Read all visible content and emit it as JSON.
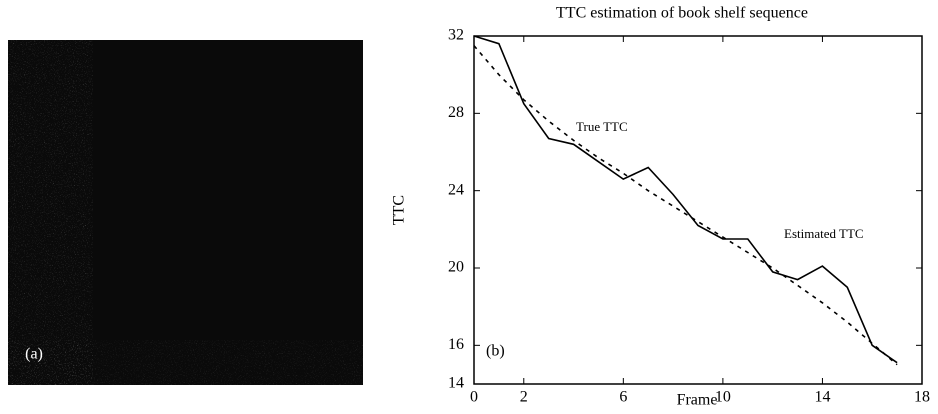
{
  "panel_a": {
    "label": "(a)"
  },
  "chart_data": {
    "type": "line",
    "title": "TTC estimation of book shelf sequence",
    "x_label": "Frame",
    "y_label": "TTC",
    "annotations": [
      "True TTC",
      "Estimated TTC",
      "(b)"
    ],
    "x": [
      0,
      1,
      2,
      3,
      4,
      5,
      6,
      7,
      8,
      9,
      10,
      11,
      12,
      13,
      14,
      15,
      16,
      17
    ],
    "series": [
      {
        "name": "True TTC",
        "color": "#000000",
        "style": "dashed",
        "values": [
          31.5,
          30,
          28.7,
          27.6,
          26.6,
          25.7,
          24.9,
          24,
          23.2,
          22.4,
          21.6,
          20.8,
          20,
          19.1,
          18.2,
          17.2,
          16.1,
          15
        ]
      },
      {
        "name": "Estimated TTC",
        "color": "#000000",
        "style": "solid",
        "values": [
          32,
          31.6,
          28.5,
          26.7,
          26.4,
          25.5,
          24.6,
          25.2,
          23.8,
          22.2,
          21.5,
          21.5,
          19.8,
          19.4,
          20.1,
          19,
          16,
          15.1
        ]
      }
    ],
    "xlim": [
      0,
      18
    ],
    "ylim": [
      14,
      32
    ],
    "xticks": [
      0,
      2,
      6,
      10,
      14,
      18
    ],
    "yticks": [
      14,
      16,
      20,
      24,
      28,
      32
    ],
    "grid": false
  }
}
